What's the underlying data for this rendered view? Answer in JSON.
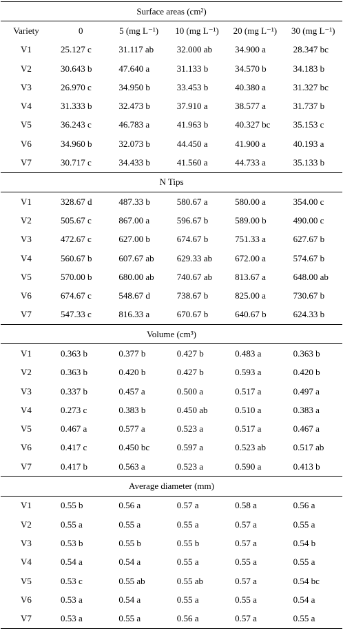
{
  "table": {
    "header": [
      "Variety",
      "0",
      "5 (mg L⁻¹)",
      "10 (mg L⁻¹)",
      "20 (mg L⁻¹)",
      "30 (mg L⁻¹)"
    ],
    "sections": [
      {
        "title": "Surface areas (cm²)",
        "rows": [
          [
            "V1",
            "25.127 c",
            "31.117 ab",
            "32.000 ab",
            "34.900 a",
            "28.347 bc"
          ],
          [
            "V2",
            "30.643 b",
            "47.640 a",
            "31.133 b",
            "34.570 b",
            "34.183 b"
          ],
          [
            "V3",
            "26.970 c",
            "34.950 b",
            "33.453 b",
            "40.380 a",
            "31.327 bc"
          ],
          [
            "V4",
            "31.333 b",
            "32.473 b",
            "37.910 a",
            "38.577 a",
            "31.737 b"
          ],
          [
            "V5",
            "36.243 c",
            "46.783 a",
            "41.963 b",
            "40.327 bc",
            "35.153 c"
          ],
          [
            "V6",
            "34.960 b",
            "32.073 b",
            "44.450 a",
            "41.900 a",
            "40.193 a"
          ],
          [
            "V7",
            "30.717 c",
            "34.433 b",
            "41.560 a",
            "44.733 a",
            "35.133 b"
          ]
        ]
      },
      {
        "title": "N Tips",
        "rows": [
          [
            "V1",
            "328.67 d",
            "487.33 b",
            "580.67 a",
            "580.00 a",
            "354.00 c"
          ],
          [
            "V2",
            "505.67 c",
            "867.00 a",
            "596.67 b",
            "589.00 b",
            "490.00 c"
          ],
          [
            "V3",
            "472.67 c",
            "627.00 b",
            "674.67 b",
            "751.33 a",
            "627.67 b"
          ],
          [
            "V4",
            "560.67 b",
            "607.67 ab",
            "629.33 ab",
            "672.00 a",
            "574.67 b"
          ],
          [
            "V5",
            "570.00 b",
            "680.00 ab",
            "740.67 ab",
            "813.67 a",
            "648.00 ab"
          ],
          [
            "V6",
            "674.67 c",
            "548.67 d",
            "738.67 b",
            "825.00 a",
            "730.67 b"
          ],
          [
            "V7",
            "547.33 c",
            "816.33 a",
            "670.67 b",
            "640.67 b",
            "624.33 b"
          ]
        ]
      },
      {
        "title": "Volume (cm³)",
        "rows": [
          [
            "V1",
            "0.363 b",
            "0.377 b",
            "0.427 b",
            "0.483 a",
            "0.363 b"
          ],
          [
            "V2",
            "0.363 b",
            "0.420 b",
            "0.427 b",
            "0.593 a",
            "0.420 b"
          ],
          [
            "V3",
            "0.337 b",
            "0.457 a",
            "0.500 a",
            "0.517 a",
            "0.497 a"
          ],
          [
            "V4",
            "0.273 c",
            "0.383 b",
            "0.450 ab",
            "0.510 a",
            "0.383 a"
          ],
          [
            "V5",
            "0.467 a",
            "0.577 a",
            "0.523 a",
            "0.517 a",
            "0.467 a"
          ],
          [
            "V6",
            "0.417 c",
            "0.450 bc",
            "0.597 a",
            "0.523 ab",
            "0.517 ab"
          ],
          [
            "V7",
            "0.417 b",
            "0.563 a",
            "0.523 a",
            "0.590 a",
            "0.413 b"
          ]
        ]
      },
      {
        "title": "Average diameter (mm)",
        "rows": [
          [
            "V1",
            "0.55 b",
            "0.56 a",
            "0.57 a",
            "0.58 a",
            "0.56 a"
          ],
          [
            "V2",
            "0.55 a",
            "0.55 a",
            "0.55 a",
            "0.57 a",
            "0.55 a"
          ],
          [
            "V3",
            "0.53 b",
            "0.55 b",
            "0.55 b",
            "0.57 a",
            "0.54 b"
          ],
          [
            "V4",
            "0.54 a",
            "0.54 a",
            "0.55 a",
            "0.55 a",
            "0.55 a"
          ],
          [
            "V5",
            "0.53 c",
            "0.55 ab",
            "0.55 ab",
            "0.57 a",
            "0.54 bc"
          ],
          [
            "V6",
            "0.53 a",
            "0.54 a",
            "0.55 a",
            "0.55 a",
            "0.54 a"
          ],
          [
            "V7",
            "0.53 a",
            "0.55 a",
            "0.56 a",
            "0.57 a",
            "0.55 a"
          ]
        ]
      }
    ]
  }
}
